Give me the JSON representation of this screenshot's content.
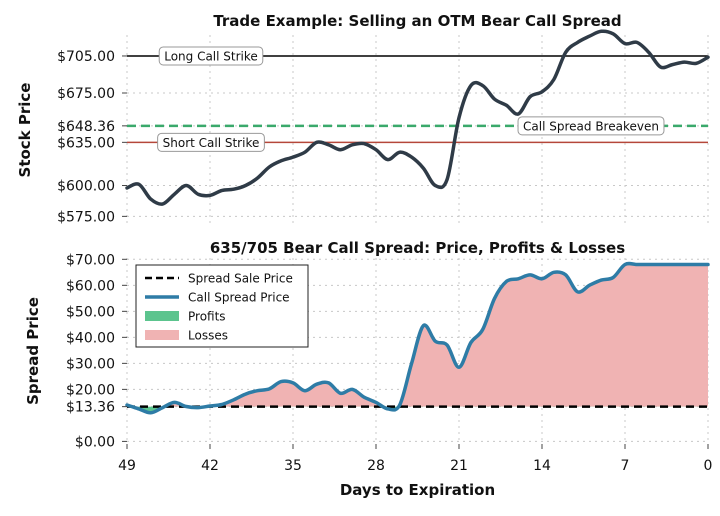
{
  "chart_data": [
    {
      "type": "line",
      "title": "Trade Example: Selling an OTM Bear Call Spread",
      "xlabel": "",
      "ylabel": "Stock Price",
      "xlim": [
        49,
        0
      ],
      "ylim": [
        568,
        722
      ],
      "grid": true,
      "yticks": [
        {
          "value": 575,
          "label": "$575.00"
        },
        {
          "value": 600,
          "label": "$600.00"
        },
        {
          "value": 635,
          "label": "$635.00"
        },
        {
          "value": 648.36,
          "label": "$648.36"
        },
        {
          "value": 675,
          "label": "$675.00"
        },
        {
          "value": 705,
          "label": "$705.00"
        }
      ],
      "series": [
        {
          "color": "#2f3b47",
          "x": [
            49,
            48,
            47,
            46,
            45,
            44,
            43,
            42,
            41,
            40,
            39,
            38,
            37,
            36,
            35,
            34,
            33,
            32,
            31,
            30,
            29,
            28,
            27,
            26,
            25,
            24,
            23,
            22,
            21,
            20,
            19,
            18,
            17,
            16,
            15,
            14,
            13,
            12,
            11,
            10,
            9,
            8,
            7,
            6,
            5,
            4,
            3,
            2,
            1,
            0
          ],
          "values": [
            598,
            601,
            589,
            585,
            593,
            600,
            593,
            592,
            596,
            597,
            600,
            606,
            615,
            620,
            623,
            627,
            635,
            633,
            629,
            633,
            634,
            629,
            621,
            627,
            623,
            614,
            600,
            605,
            655,
            681,
            681,
            670,
            665,
            658,
            672,
            676,
            686,
            708,
            716,
            721,
            725,
            723,
            715,
            716,
            708,
            696,
            698,
            700,
            699,
            704
          ]
        }
      ],
      "annotations": [
        {
          "label": "Long Call Strike",
          "value": 705,
          "color": "#000000",
          "style": "solid"
        },
        {
          "label": "Call Spread Breakeven",
          "value": 648.36,
          "color": "#3aa96b",
          "style": "dashed"
        },
        {
          "label": "Short Call Strike",
          "value": 635,
          "color": "#b5473a",
          "style": "solid"
        }
      ]
    },
    {
      "type": "area",
      "title": "635/705 Bear Call Spread: Price, Profits & Losses",
      "xlabel": "Days to Expiration",
      "ylabel": "Spread Price",
      "xlim": [
        49,
        0
      ],
      "ylim": [
        -1,
        70.5
      ],
      "grid": true,
      "legend_position": "top-left",
      "xticks": [
        {
          "value": 49,
          "label": "49"
        },
        {
          "value": 42,
          "label": "42"
        },
        {
          "value": 35,
          "label": "35"
        },
        {
          "value": 28,
          "label": "28"
        },
        {
          "value": 21,
          "label": "21"
        },
        {
          "value": 14,
          "label": "14"
        },
        {
          "value": 7,
          "label": "7"
        },
        {
          "value": 0,
          "label": "0"
        }
      ],
      "yticks": [
        {
          "value": 0,
          "label": "$0.00"
        },
        {
          "value": 13.36,
          "label": "$13.36"
        },
        {
          "value": 20,
          "label": "$20.00"
        },
        {
          "value": 30,
          "label": "$30.00"
        },
        {
          "value": 40,
          "label": "$40.00"
        },
        {
          "value": 50,
          "label": "$50.00"
        },
        {
          "value": 60,
          "label": "$60.00"
        },
        {
          "value": 70,
          "label": "$70.00"
        }
      ],
      "legend": [
        {
          "label": "Spread Sale Price",
          "kind": "dashed-line",
          "color": "#000000"
        },
        {
          "label": "Call Spread Price",
          "kind": "line",
          "color": "#2e7ca6"
        },
        {
          "label": "Profits",
          "kind": "patch",
          "color": "#5cc48e"
        },
        {
          "label": "Losses",
          "kind": "patch",
          "color": "#f0b3b3"
        }
      ],
      "sale_price": 13.36,
      "series": [
        {
          "name": "Call Spread Price",
          "color": "#2e7ca6",
          "x": [
            49,
            48,
            47,
            46,
            45,
            44,
            43,
            42,
            41,
            40,
            39,
            38,
            37,
            36,
            35,
            34,
            33,
            32,
            31,
            30,
            29,
            28,
            27,
            26,
            25,
            24,
            23,
            22,
            21,
            20,
            19,
            18,
            17,
            16,
            15,
            14,
            13,
            12,
            11,
            10,
            9,
            8,
            7,
            6,
            5,
            4,
            3,
            2,
            1,
            0
          ],
          "values": [
            14.0,
            12.5,
            11.0,
            13.0,
            15.0,
            13.4,
            13.0,
            13.6,
            14.2,
            16.0,
            18.2,
            19.5,
            20.2,
            23.0,
            22.5,
            19.5,
            22.0,
            22.5,
            18.5,
            20.0,
            17.0,
            15.0,
            12.5,
            14.0,
            30.0,
            44.5,
            38.5,
            37.0,
            28.5,
            38.0,
            43.0,
            55.0,
            61.5,
            62.5,
            64.0,
            62.5,
            65.0,
            64.0,
            57.5,
            60.0,
            62.0,
            63.0,
            68.0,
            68.0,
            68.0,
            68.0,
            68.0,
            68.0,
            68.0,
            68.0
          ]
        }
      ]
    }
  ]
}
